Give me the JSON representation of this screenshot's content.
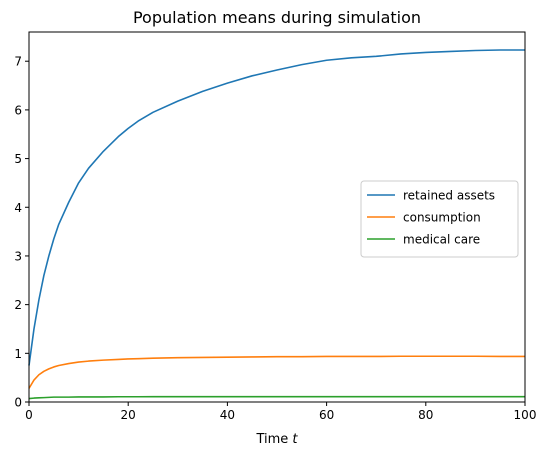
{
  "chart_data": {
    "type": "line",
    "title": "Population means during simulation",
    "xlabel_prefix": "Time ",
    "xlabel_var": "t",
    "ylabel": "",
    "xlim": [
      0,
      100
    ],
    "ylim": [
      0,
      7.6
    ],
    "xticks": [
      0,
      20,
      40,
      60,
      80,
      100
    ],
    "yticks": [
      0,
      1,
      2,
      3,
      4,
      5,
      6,
      7
    ],
    "grid": false,
    "legend_position": "center-right",
    "x": [
      0,
      1,
      2,
      3,
      4,
      5,
      6,
      8,
      10,
      12,
      15,
      18,
      20,
      22,
      25,
      30,
      35,
      40,
      45,
      50,
      55,
      60,
      65,
      70,
      75,
      80,
      85,
      90,
      95,
      100
    ],
    "series": [
      {
        "name": "retained assets",
        "color": "#1f77b4",
        "values": [
          0.75,
          1.5,
          2.1,
          2.6,
          3.0,
          3.35,
          3.65,
          4.1,
          4.5,
          4.8,
          5.15,
          5.45,
          5.62,
          5.77,
          5.95,
          6.18,
          6.38,
          6.55,
          6.7,
          6.82,
          6.93,
          7.02,
          7.07,
          7.1,
          7.15,
          7.18,
          7.2,
          7.22,
          7.23,
          7.23
        ]
      },
      {
        "name": "consumption",
        "color": "#ff7f0e",
        "values": [
          0.28,
          0.45,
          0.56,
          0.63,
          0.68,
          0.72,
          0.75,
          0.79,
          0.82,
          0.84,
          0.86,
          0.875,
          0.885,
          0.89,
          0.9,
          0.91,
          0.915,
          0.92,
          0.925,
          0.93,
          0.93,
          0.935,
          0.935,
          0.935,
          0.94,
          0.94,
          0.94,
          0.94,
          0.935,
          0.935
        ]
      },
      {
        "name": "medical care",
        "color": "#2ca02c",
        "values": [
          0.07,
          0.08,
          0.085,
          0.09,
          0.095,
          0.1,
          0.1,
          0.1,
          0.105,
          0.105,
          0.105,
          0.108,
          0.108,
          0.108,
          0.11,
          0.11,
          0.11,
          0.11,
          0.11,
          0.11,
          0.11,
          0.11,
          0.11,
          0.11,
          0.11,
          0.11,
          0.11,
          0.11,
          0.11,
          0.11
        ]
      }
    ]
  }
}
